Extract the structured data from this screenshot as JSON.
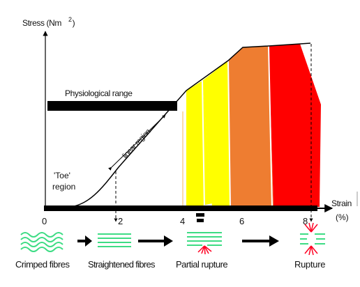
{
  "labels": {
    "y_axis": "Stress (Nm",
    "y_axis_sup": "2",
    "y_axis_close": ")",
    "x_axis": "Strain",
    "x_axis_unit": "(%)",
    "physiological_range": "Physiological range",
    "linear_region": "linear region",
    "toe_line1": "'Toe'",
    "toe_line2": "region"
  },
  "x_ticks": [
    "0",
    "2",
    "4",
    "6",
    "8"
  ],
  "stages": [
    {
      "label": "Crimped fibres"
    },
    {
      "label": "Straightened fibres"
    },
    {
      "label": "Partial rupture"
    },
    {
      "label": "Rupture"
    }
  ],
  "colors": {
    "axis": "#000000",
    "fibre": "#3ddc84",
    "yellow": "#ffff00",
    "orange": "#ee7d31",
    "red": "#ff0000",
    "rupture_mark": "#ff0022",
    "toe_marker": "#f5b85a"
  },
  "icons": {
    "stage_arrow": "right-arrow-icon",
    "axis_arrow": "arrowhead-icon"
  }
}
